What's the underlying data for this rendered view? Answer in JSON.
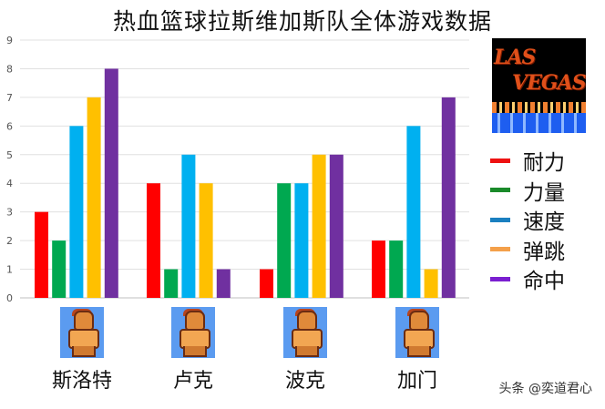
{
  "chart_data": {
    "type": "bar",
    "title": "热血篮球拉斯维加斯队全体游戏数据",
    "categories": [
      "斯洛特",
      "卢克",
      "波克",
      "加门"
    ],
    "series": [
      {
        "name": "耐力",
        "color": "#ff0000",
        "values": [
          3,
          4,
          1,
          2
        ]
      },
      {
        "name": "力量",
        "color": "#00a850",
        "values": [
          2,
          1,
          4,
          2
        ]
      },
      {
        "name": "速度",
        "color": "#00b0f0",
        "values": [
          6,
          5,
          4,
          6
        ]
      },
      {
        "name": "弹跳",
        "color": "#ffc000",
        "values": [
          7,
          4,
          5,
          1
        ]
      },
      {
        "name": "命中",
        "color": "#7030a0",
        "values": [
          8,
          1,
          5,
          7
        ]
      }
    ],
    "ylim": [
      0,
      9
    ],
    "yticks": [
      "0",
      "1",
      "2",
      "3",
      "4",
      "5",
      "6",
      "7",
      "8",
      "9"
    ],
    "grid": true,
    "legend_position": "right"
  },
  "logo": {
    "line1": "LAS",
    "line2": "VEGAS"
  },
  "watermark": "头条 @奕道君心",
  "legend_colors": {
    "耐力": "#ee1111",
    "力量": "#1a8a2a",
    "速度": "#1a7fc0",
    "弹跳": "#f4a04a",
    "命中": "#7a1fd0"
  }
}
